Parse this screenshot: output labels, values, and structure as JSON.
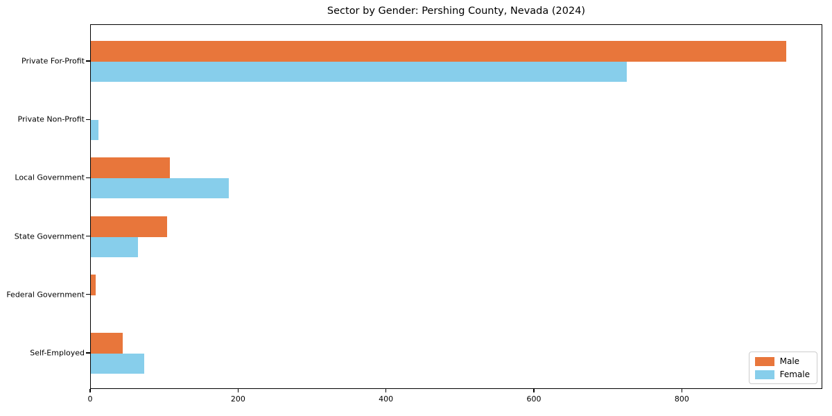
{
  "title": "Sector by Gender: Pershing County, Nevada (2024)",
  "chart_data": {
    "type": "bar",
    "orientation": "horizontal",
    "title": "Sector by Gender: Pershing County, Nevada (2024)",
    "categories": [
      "Private For-Profit",
      "Private Non-Profit",
      "Local Government",
      "State Government",
      "Federal Government",
      "Self-Employed"
    ],
    "series": [
      {
        "name": "Male",
        "color": "#e8763b",
        "values": [
          940,
          0,
          107,
          103,
          7,
          43
        ]
      },
      {
        "name": "Female",
        "color": "#87ceeb",
        "values": [
          725,
          10,
          187,
          64,
          0,
          72
        ]
      }
    ],
    "xlabel": "",
    "ylabel": "",
    "xlim": [
      0,
      990
    ],
    "xticks": [
      0,
      200,
      400,
      600,
      800
    ],
    "xtick_labels": [
      "0",
      "200",
      "400",
      "600",
      "800"
    ],
    "grid": false,
    "legend_position": "lower right",
    "legend": [
      {
        "label": "Male",
        "color": "#e8763b"
      },
      {
        "label": "Female",
        "color": "#87ceeb"
      }
    ]
  }
}
